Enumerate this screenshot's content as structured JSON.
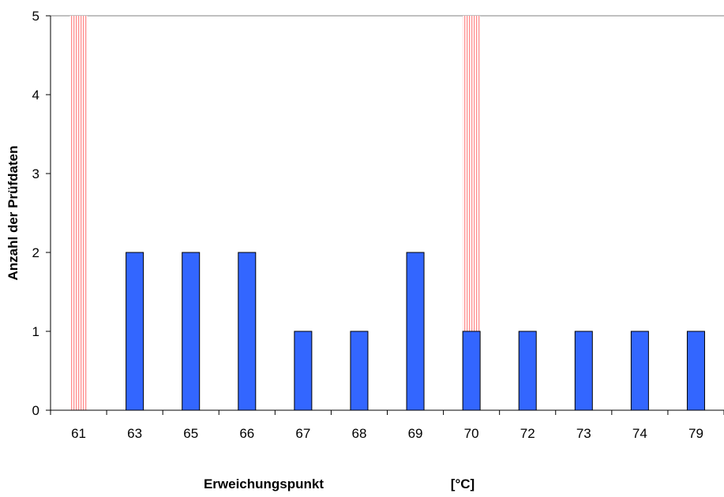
{
  "chart_data": {
    "type": "bar",
    "categories": [
      "61",
      "63",
      "65",
      "66",
      "67",
      "68",
      "69",
      "70",
      "72",
      "73",
      "74",
      "79"
    ],
    "series": [
      {
        "values": [
          0,
          2,
          2,
          2,
          1,
          1,
          2,
          1,
          1,
          1,
          1,
          1
        ],
        "color": "#3366FF"
      }
    ],
    "reference_bands": [
      {
        "category": "61",
        "value": 5,
        "color": "#FF9999",
        "style": "vertical-hatch"
      },
      {
        "category": "70",
        "value": 5,
        "color": "#FF9999",
        "style": "vertical-hatch"
      }
    ],
    "xlabel": "Erweichungspunkt",
    "xunit": "[°C]",
    "ylabel": "Anzahl der Prüfdaten",
    "ylim": [
      0,
      5
    ],
    "yticks": [
      0,
      1,
      2,
      3,
      4,
      5
    ],
    "grid": false,
    "legend": "none"
  }
}
